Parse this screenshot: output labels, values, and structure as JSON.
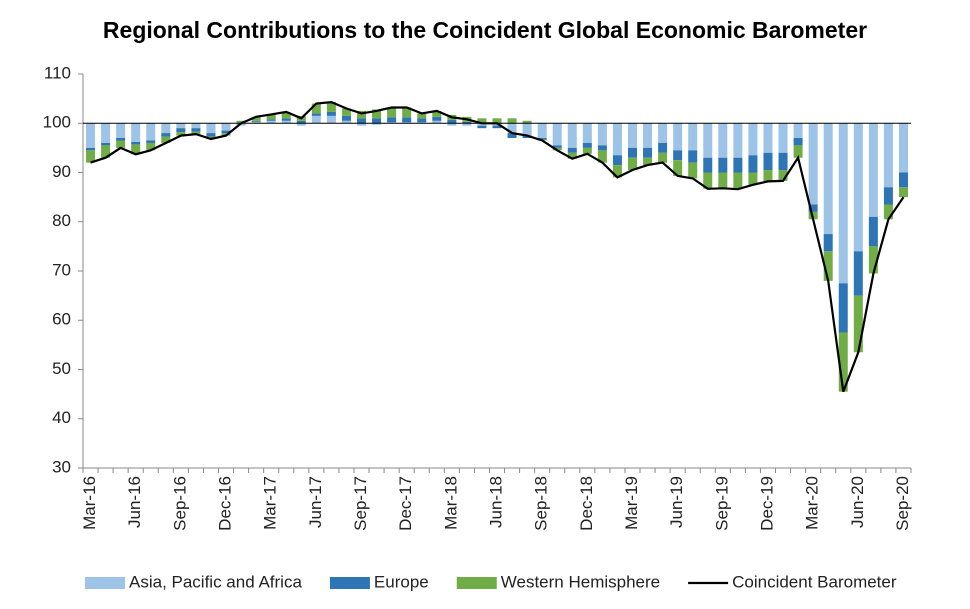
{
  "chart_data": {
    "type": "bar",
    "title": "Regional Contributions to the Coincident Global Economic Barometer",
    "categories": [
      "Mar-16",
      null,
      null,
      "Jun-16",
      null,
      null,
      "Sep-16",
      null,
      null,
      "Dec-16",
      null,
      null,
      "Mar-17",
      null,
      null,
      "Jun-17",
      null,
      null,
      "Sep-17",
      null,
      null,
      "Dec-17",
      null,
      null,
      "Mar-18",
      null,
      null,
      "Jun-18",
      null,
      null,
      "Sep-18",
      null,
      null,
      "Dec-18",
      null,
      null,
      "Mar-19",
      null,
      null,
      "Jun-19",
      null,
      null,
      "Sep-19",
      null,
      null,
      "Dec-19",
      null,
      null,
      "Mar-20",
      null,
      null,
      "Jun-20",
      null,
      null,
      "Sep-20"
    ],
    "bar_base": 100,
    "series": [
      {
        "name": "Asia, Pacific and Africa",
        "color": "#9dc3e6",
        "type": "bar",
        "values": [
          -5,
          -4,
          -3,
          -3.8,
          -3.5,
          -2,
          -1,
          -1,
          -2,
          -1.5,
          -0.5,
          0.3,
          0.5,
          0.5,
          -0.5,
          1.5,
          1.5,
          0.5,
          -0.5,
          -0.3,
          0.2,
          0.2,
          0.2,
          0.5,
          -0.5,
          -0.5,
          -0.5,
          -0.5,
          -2,
          -2.5,
          -3,
          -4.5,
          -5,
          -4,
          -4.5,
          -6.5,
          -5,
          -5,
          -4,
          -5.5,
          -5.5,
          -7,
          -7,
          -7,
          -6.5,
          -6,
          -6,
          -3,
          -16.5,
          -22.5,
          -32.5,
          -26,
          -19,
          -13,
          -10
        ]
      },
      {
        "name": "Europe",
        "color": "#2e75b6",
        "type": "bar",
        "values": [
          -0.5,
          -0.5,
          -0.5,
          -0.5,
          -0.5,
          -0.7,
          -0.8,
          -0.7,
          -0.7,
          -0.5,
          0.2,
          0.2,
          0.3,
          0.5,
          0.5,
          0.5,
          0.8,
          1,
          1,
          1,
          1,
          1,
          0.8,
          0.8,
          0.7,
          0.3,
          -0.5,
          -0.5,
          -1,
          -0.5,
          -0.3,
          -0.5,
          -1,
          -1,
          -1,
          -2,
          -2,
          -2,
          -2,
          -2,
          -2.5,
          -3,
          -3,
          -3,
          -3.5,
          -3.5,
          -3.5,
          -1.5,
          -1.5,
          -3.5,
          -10,
          -9,
          -6,
          -3.5,
          -3
        ]
      },
      {
        "name": "Western Hemisphere",
        "color": "#70ad47",
        "type": "bar",
        "values": [
          -2.5,
          -2.5,
          -1.5,
          -2,
          -1.5,
          -1.3,
          -0.7,
          -0.5,
          -0.5,
          -0.5,
          0.3,
          0.8,
          1,
          1.3,
          1,
          2,
          2,
          1.5,
          1.5,
          1.8,
          2,
          2,
          1,
          1.2,
          1,
          1,
          1,
          1,
          1,
          0.5,
          -0.2,
          -0.5,
          -1.2,
          -1.2,
          -2.5,
          -2.5,
          -2.5,
          -1.5,
          -2,
          -3.2,
          -3.2,
          -3.3,
          -3.2,
          -3.4,
          -2.5,
          -2.3,
          -2.2,
          -2.5,
          -1.5,
          -6,
          -12,
          -11.5,
          -5.5,
          -3,
          -2
        ]
      },
      {
        "name": "Coincident Barometer",
        "color": "#000000",
        "type": "line",
        "values": [
          92,
          93,
          95,
          93.7,
          94.5,
          96,
          97.5,
          97.8,
          96.8,
          97.5,
          100,
          101.3,
          101.8,
          102.3,
          101,
          104,
          104.3,
          103,
          102,
          102.5,
          103.2,
          103.2,
          102,
          102.5,
          101.2,
          100.8,
          100,
          100,
          98,
          97.5,
          96.5,
          94.5,
          92.8,
          93.8,
          92,
          89,
          90.5,
          91.5,
          92,
          89.3,
          88.8,
          86.7,
          86.8,
          86.6,
          87.5,
          88.2,
          88.3,
          93,
          80.5,
          68,
          45.5,
          53.5,
          69.5,
          80.5,
          85
        ]
      }
    ],
    "ylim": [
      30,
      110
    ],
    "yticks": [
      30,
      40,
      50,
      60,
      70,
      80,
      90,
      100,
      110
    ],
    "grid": false,
    "legend": "bottom"
  }
}
